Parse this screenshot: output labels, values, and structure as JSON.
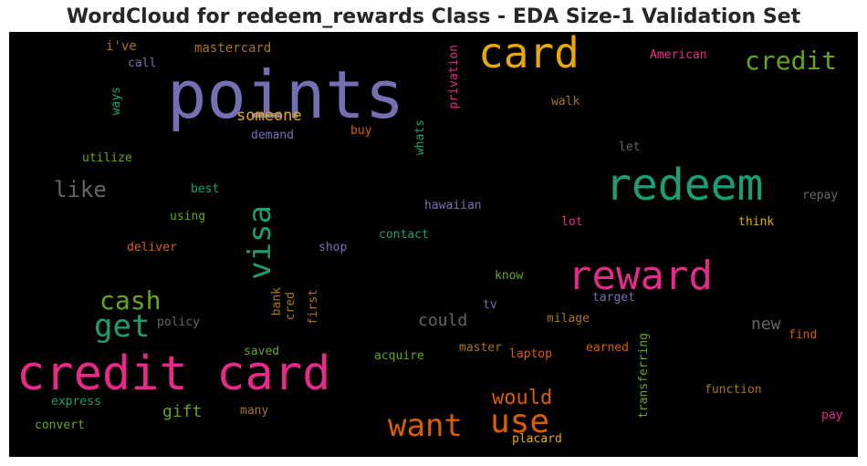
{
  "title": "WordCloud for redeem_rewards Class - EDA Size-1 Validation Set",
  "colors": {
    "pink": "#e7298a",
    "green": "#1b9e77",
    "purple": "#7570b3",
    "gold": "#e6ab02",
    "orange": "#d95f02",
    "lime": "#66a61e",
    "brown": "#a6761d",
    "gray": "#666666",
    "background": "#000000"
  },
  "words": [
    {
      "id": "points",
      "text": "points"
    },
    {
      "id": "card",
      "text": "card"
    },
    {
      "id": "credit",
      "text": "credit"
    },
    {
      "id": "redeem",
      "text": "redeem"
    },
    {
      "id": "reward",
      "text": "reward"
    },
    {
      "id": "credit_card",
      "text": "credit card"
    },
    {
      "id": "visa",
      "text": "visa"
    },
    {
      "id": "cash",
      "text": "cash"
    },
    {
      "id": "get",
      "text": "get"
    },
    {
      "id": "want",
      "text": "want"
    },
    {
      "id": "use",
      "text": "use"
    },
    {
      "id": "would",
      "text": "would"
    },
    {
      "id": "like",
      "text": "like"
    },
    {
      "id": "someone",
      "text": "someone"
    },
    {
      "id": "could",
      "text": "could"
    },
    {
      "id": "new",
      "text": "new"
    },
    {
      "id": "gift",
      "text": "gift"
    },
    {
      "id": "ive",
      "text": "i've"
    },
    {
      "id": "mastercard",
      "text": "mastercard"
    },
    {
      "id": "american",
      "text": "American"
    },
    {
      "id": "call",
      "text": "call"
    },
    {
      "id": "ways",
      "text": "ways"
    },
    {
      "id": "privation",
      "text": "privation"
    },
    {
      "id": "walk",
      "text": "walk"
    },
    {
      "id": "demand",
      "text": "demand"
    },
    {
      "id": "buy",
      "text": "buy"
    },
    {
      "id": "whats",
      "text": "whats"
    },
    {
      "id": "let",
      "text": "let"
    },
    {
      "id": "utilize",
      "text": "utilize"
    },
    {
      "id": "best",
      "text": "best"
    },
    {
      "id": "repay",
      "text": "repay"
    },
    {
      "id": "hawaiian",
      "text": "hawaiian"
    },
    {
      "id": "using",
      "text": "using"
    },
    {
      "id": "lot",
      "text": "lot"
    },
    {
      "id": "think",
      "text": "think"
    },
    {
      "id": "contact",
      "text": "contact"
    },
    {
      "id": "deliver",
      "text": "deliver"
    },
    {
      "id": "shop",
      "text": "shop"
    },
    {
      "id": "know",
      "text": "know"
    },
    {
      "id": "bank",
      "text": "bank"
    },
    {
      "id": "cred",
      "text": "cred"
    },
    {
      "id": "first",
      "text": "first"
    },
    {
      "id": "target",
      "text": "target"
    },
    {
      "id": "tv",
      "text": "tv"
    },
    {
      "id": "policy",
      "text": "policy"
    },
    {
      "id": "milage",
      "text": "milage"
    },
    {
      "id": "find",
      "text": "find"
    },
    {
      "id": "saved",
      "text": "saved"
    },
    {
      "id": "acquire",
      "text": "acquire"
    },
    {
      "id": "master",
      "text": "master"
    },
    {
      "id": "laptop",
      "text": "laptop"
    },
    {
      "id": "earned",
      "text": "earned"
    },
    {
      "id": "transferring",
      "text": "transferring"
    },
    {
      "id": "express",
      "text": "express"
    },
    {
      "id": "function",
      "text": "function"
    },
    {
      "id": "many",
      "text": "many"
    },
    {
      "id": "convert",
      "text": "convert"
    },
    {
      "id": "pay",
      "text": "pay"
    },
    {
      "id": "placard",
      "text": "placard"
    }
  ]
}
